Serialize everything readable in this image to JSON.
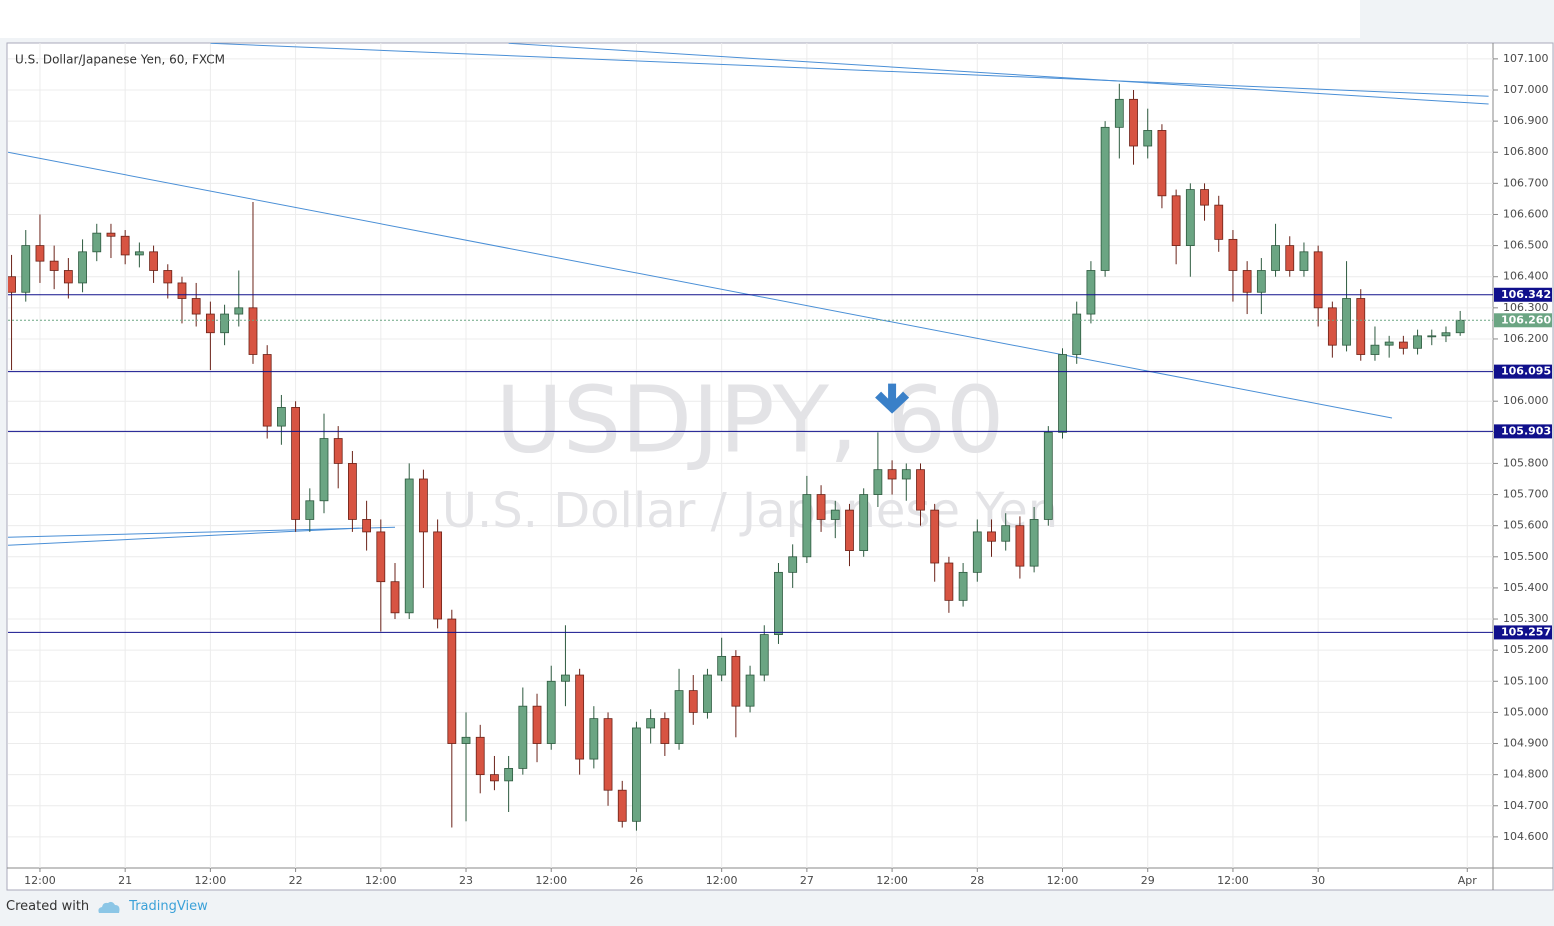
{
  "chart_data": {
    "type": "candlestick",
    "title": "U.S. Dollar/Japanese Yen, 60, FXCM",
    "watermark": "USDJPY, 60",
    "watermark_subtitle": "U.S. Dollar / Japanese Yen",
    "x": [
      -4,
      -2,
      0,
      2,
      4,
      6,
      8,
      10,
      12,
      14,
      16,
      18,
      20,
      22,
      24,
      26,
      28,
      30,
      32,
      34,
      36,
      38,
      40,
      42,
      44,
      46,
      48,
      50,
      52,
      54,
      56,
      58,
      60,
      62,
      64,
      66,
      68,
      70,
      72,
      74,
      76,
      78,
      80,
      82,
      84,
      86,
      88,
      90,
      92,
      94,
      96,
      98,
      100,
      102,
      104,
      106,
      108,
      110,
      112,
      114,
      116,
      118,
      120,
      122,
      124,
      126,
      128,
      130,
      132,
      134,
      136,
      138,
      140,
      142,
      144,
      146,
      148,
      150,
      152,
      154,
      156,
      158,
      160,
      162,
      164,
      166,
      168,
      170,
      172,
      174,
      176,
      178,
      180,
      182,
      184,
      186,
      188,
      190,
      192,
      194,
      196,
      198,
      200
    ],
    "candles": [
      [
        106.4,
        106.47,
        106.1,
        106.35
      ],
      [
        106.35,
        106.55,
        106.32,
        106.5
      ],
      [
        106.5,
        106.6,
        106.38,
        106.45
      ],
      [
        106.45,
        106.5,
        106.36,
        106.42
      ],
      [
        106.42,
        106.46,
        106.33,
        106.38
      ],
      [
        106.38,
        106.52,
        106.35,
        106.48
      ],
      [
        106.48,
        106.57,
        106.45,
        106.54
      ],
      [
        106.54,
        106.57,
        106.46,
        106.53
      ],
      [
        106.53,
        106.55,
        106.44,
        106.47
      ],
      [
        106.47,
        106.51,
        106.43,
        106.48
      ],
      [
        106.48,
        106.5,
        106.38,
        106.42
      ],
      [
        106.42,
        106.44,
        106.33,
        106.38
      ],
      [
        106.38,
        106.4,
        106.25,
        106.33
      ],
      [
        106.33,
        106.38,
        106.24,
        106.28
      ],
      [
        106.28,
        106.32,
        106.1,
        106.22
      ],
      [
        106.22,
        106.31,
        106.18,
        106.28
      ],
      [
        106.28,
        106.42,
        106.24,
        106.3
      ],
      [
        106.3,
        106.64,
        106.12,
        106.15
      ],
      [
        106.15,
        106.18,
        105.88,
        105.92
      ],
      [
        105.92,
        106.02,
        105.86,
        105.98
      ],
      [
        105.98,
        106.0,
        105.58,
        105.62
      ],
      [
        105.62,
        105.72,
        105.58,
        105.68
      ],
      [
        105.68,
        105.96,
        105.64,
        105.88
      ],
      [
        105.88,
        105.92,
        105.72,
        105.8
      ],
      [
        105.8,
        105.84,
        105.58,
        105.62
      ],
      [
        105.62,
        105.68,
        105.52,
        105.58
      ],
      [
        105.58,
        105.62,
        105.26,
        105.42
      ],
      [
        105.42,
        105.48,
        105.3,
        105.32
      ],
      [
        105.32,
        105.8,
        105.3,
        105.75
      ],
      [
        105.75,
        105.78,
        105.4,
        105.58
      ],
      [
        105.58,
        105.62,
        105.27,
        105.3
      ],
      [
        105.3,
        105.33,
        104.63,
        104.9
      ],
      [
        104.9,
        105.0,
        104.65,
        104.92
      ],
      [
        104.92,
        104.96,
        104.74,
        104.8
      ],
      [
        104.8,
        104.86,
        104.75,
        104.78
      ],
      [
        104.78,
        104.86,
        104.68,
        104.82
      ],
      [
        104.82,
        105.08,
        104.8,
        105.02
      ],
      [
        105.02,
        105.06,
        104.84,
        104.9
      ],
      [
        104.9,
        105.15,
        104.88,
        105.1
      ],
      [
        105.1,
        105.28,
        105.02,
        105.12
      ],
      [
        105.12,
        105.14,
        104.8,
        104.85
      ],
      [
        104.85,
        105.02,
        104.82,
        104.98
      ],
      [
        104.98,
        105.0,
        104.7,
        104.75
      ],
      [
        104.75,
        104.78,
        104.63,
        104.65
      ],
      [
        104.65,
        104.97,
        104.62,
        104.95
      ],
      [
        104.95,
        105.01,
        104.9,
        104.98
      ],
      [
        104.98,
        105.0,
        104.86,
        104.9
      ],
      [
        104.9,
        105.14,
        104.88,
        105.07
      ],
      [
        105.07,
        105.12,
        104.96,
        105.0
      ],
      [
        105.0,
        105.14,
        104.98,
        105.12
      ],
      [
        105.12,
        105.24,
        105.1,
        105.18
      ],
      [
        105.18,
        105.2,
        104.92,
        105.02
      ],
      [
        105.02,
        105.15,
        105.0,
        105.12
      ],
      [
        105.12,
        105.28,
        105.1,
        105.25
      ],
      [
        105.25,
        105.48,
        105.22,
        105.45
      ],
      [
        105.45,
        105.54,
        105.4,
        105.5
      ],
      [
        105.5,
        105.76,
        105.48,
        105.7
      ],
      [
        105.7,
        105.73,
        105.58,
        105.62
      ],
      [
        105.62,
        105.68,
        105.56,
        105.65
      ],
      [
        105.65,
        105.67,
        105.47,
        105.52
      ],
      [
        105.52,
        105.72,
        105.5,
        105.7
      ],
      [
        105.7,
        105.9,
        105.66,
        105.78
      ],
      [
        105.78,
        105.81,
        105.7,
        105.75
      ],
      [
        105.75,
        105.8,
        105.68,
        105.78
      ],
      [
        105.78,
        105.8,
        105.6,
        105.65
      ],
      [
        105.65,
        105.67,
        105.42,
        105.48
      ],
      [
        105.48,
        105.5,
        105.32,
        105.36
      ],
      [
        105.36,
        105.48,
        105.34,
        105.45
      ],
      [
        105.45,
        105.62,
        105.42,
        105.58
      ],
      [
        105.58,
        105.62,
        105.5,
        105.55
      ],
      [
        105.55,
        105.64,
        105.52,
        105.6
      ],
      [
        105.6,
        105.63,
        105.43,
        105.47
      ],
      [
        105.47,
        105.66,
        105.45,
        105.62
      ],
      [
        105.62,
        105.92,
        105.6,
        105.9
      ],
      [
        105.9,
        106.17,
        105.88,
        106.15
      ],
      [
        106.15,
        106.32,
        106.12,
        106.28
      ],
      [
        106.28,
        106.45,
        106.25,
        106.42
      ],
      [
        106.42,
        106.9,
        106.4,
        106.88
      ],
      [
        106.88,
        107.02,
        106.78,
        106.97
      ],
      [
        106.97,
        107.0,
        106.76,
        106.82
      ],
      [
        106.82,
        106.94,
        106.78,
        106.87
      ],
      [
        106.87,
        106.89,
        106.62,
        106.66
      ],
      [
        106.66,
        106.68,
        106.44,
        106.5
      ],
      [
        106.5,
        106.7,
        106.4,
        106.68
      ],
      [
        106.68,
        106.7,
        106.58,
        106.63
      ],
      [
        106.63,
        106.66,
        106.48,
        106.52
      ],
      [
        106.52,
        106.55,
        106.32,
        106.42
      ],
      [
        106.42,
        106.45,
        106.28,
        106.35
      ],
      [
        106.35,
        106.46,
        106.28,
        106.42
      ],
      [
        106.42,
        106.57,
        106.4,
        106.5
      ],
      [
        106.5,
        106.53,
        106.4,
        106.42
      ],
      [
        106.42,
        106.51,
        106.4,
        106.48
      ],
      [
        106.48,
        106.5,
        106.24,
        106.3
      ],
      [
        106.3,
        106.32,
        106.14,
        106.18
      ],
      [
        106.18,
        106.45,
        106.16,
        106.33
      ],
      [
        106.33,
        106.36,
        106.13,
        106.15
      ],
      [
        106.15,
        106.24,
        106.13,
        106.18
      ],
      [
        106.18,
        106.21,
        106.14,
        106.19
      ],
      [
        106.19,
        106.21,
        106.15,
        106.17
      ],
      [
        106.17,
        106.23,
        106.15,
        106.21
      ],
      [
        106.21,
        106.23,
        106.18,
        106.21
      ],
      [
        106.21,
        106.24,
        106.19,
        106.22
      ],
      [
        106.22,
        106.29,
        106.21,
        106.26
      ]
    ],
    "up_color": "#6ba583",
    "down_color": "#d75442",
    "xlim": [
      -4.5,
      204.2
    ],
    "ylim": [
      104.5,
      107.151
    ],
    "xticks": [
      {
        "value": 0,
        "label": "12:00"
      },
      {
        "value": 12,
        "label": "21"
      },
      {
        "value": 24,
        "label": "12:00"
      },
      {
        "value": 36,
        "label": "22"
      },
      {
        "value": 48,
        "label": "12:00"
      },
      {
        "value": 60,
        "label": "23"
      },
      {
        "value": 72,
        "label": "12:00"
      },
      {
        "value": 84,
        "label": "26"
      },
      {
        "value": 96,
        "label": "12:00"
      },
      {
        "value": 108,
        "label": "27"
      },
      {
        "value": 120,
        "label": "12:00"
      },
      {
        "value": 132,
        "label": "28"
      },
      {
        "value": 144,
        "label": "12:00"
      },
      {
        "value": 156,
        "label": "29"
      },
      {
        "value": 168,
        "label": "12:00"
      },
      {
        "value": 180,
        "label": "30"
      },
      {
        "value": 201,
        "label": "Apr"
      }
    ],
    "yticks": [
      {
        "value": 104.6,
        "label": "104.600"
      },
      {
        "value": 104.7,
        "label": "104.700"
      },
      {
        "value": 104.8,
        "label": "104.800"
      },
      {
        "value": 104.9,
        "label": "104.900"
      },
      {
        "value": 105.0,
        "label": "105.000"
      },
      {
        "value": 105.1,
        "label": "105.100"
      },
      {
        "value": 105.2,
        "label": "105.200"
      },
      {
        "value": 105.3,
        "label": "105.300"
      },
      {
        "value": 105.4,
        "label": "105.400"
      },
      {
        "value": 105.5,
        "label": "105.500"
      },
      {
        "value": 105.6,
        "label": "105.600"
      },
      {
        "value": 105.7,
        "label": "105.700"
      },
      {
        "value": 105.8,
        "label": "105.800"
      },
      {
        "value": 105.9,
        "label": "105.900"
      },
      {
        "value": 106.0,
        "label": "106.000"
      },
      {
        "value": 106.1,
        "label": "106.100"
      },
      {
        "value": 106.2,
        "label": "106.200"
      },
      {
        "value": 106.3,
        "label": "106.300"
      },
      {
        "value": 106.4,
        "label": "106.400"
      },
      {
        "value": 106.5,
        "label": "106.500"
      },
      {
        "value": 106.6,
        "label": "106.600"
      },
      {
        "value": 106.7,
        "label": "106.700"
      },
      {
        "value": 106.8,
        "label": "106.800"
      },
      {
        "value": 106.9,
        "label": "106.900"
      },
      {
        "value": 107.0,
        "label": "107.000"
      },
      {
        "value": 107.1,
        "label": "107.100"
      }
    ],
    "grid": true,
    "levels": [
      106.342,
      106.095,
      105.903,
      105.257
    ],
    "level_color": "#10108c",
    "last_price": {
      "value": 106.26,
      "label": "106.260"
    },
    "last_price_color": "#6ba583",
    "trendlines": [
      {
        "x": [
          24,
          204
        ],
        "y": [
          107.15,
          106.98
        ]
      },
      {
        "x": [
          66,
          204
        ],
        "y": [
          107.15,
          106.955
        ]
      },
      {
        "x": [
          -4.5,
          190.4
        ],
        "y": [
          106.8,
          105.946
        ]
      },
      {
        "x": [
          -4.5,
          50
        ],
        "y": [
          105.563,
          105.595
        ]
      },
      {
        "x": [
          -4.5,
          45
        ],
        "y": [
          105.537,
          105.592
        ]
      }
    ],
    "trendline_color": "#4a8fd6",
    "arrow": {
      "x": 120,
      "y": 105.96,
      "color": "#3a80c8"
    }
  },
  "footer": {
    "prefix": "Created with",
    "brand": "TradingView"
  }
}
